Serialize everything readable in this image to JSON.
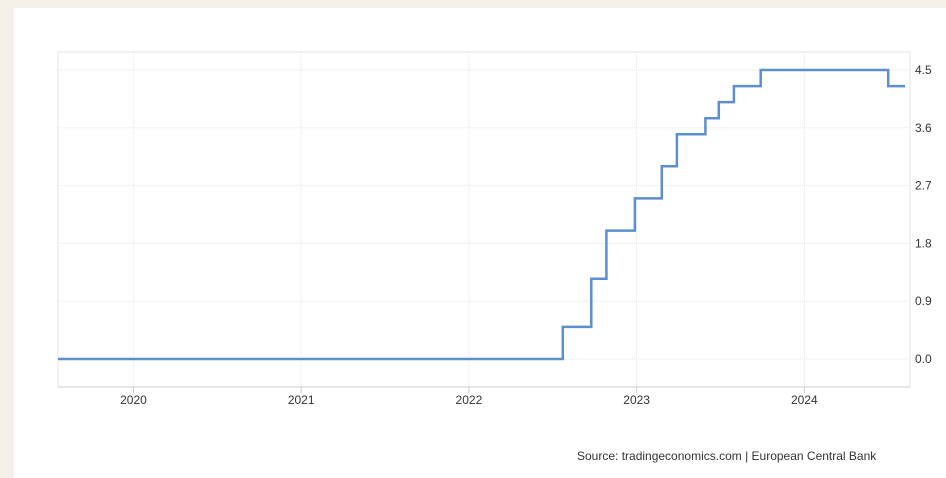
{
  "chart_data": {
    "type": "line",
    "title": "",
    "xlabel": "",
    "ylabel": "",
    "x_ticks": [
      "2020",
      "2021",
      "2022",
      "2023",
      "2024"
    ],
    "y_ticks": [
      "0.0",
      "0.9",
      "1.8",
      "2.7",
      "3.6",
      "4.5"
    ],
    "ylim": [
      0,
      4.5
    ],
    "xlim": [
      2019.55,
      2024.63
    ],
    "grid": true,
    "step": true,
    "colors": {
      "line": "#5b8fcf",
      "grid": "#e6e6e6",
      "axis": "#cccccc"
    },
    "series": [
      {
        "values": [
          {
            "x": 2019.55,
            "y": 0.0
          },
          {
            "x": 2022.56,
            "y": 0.5
          },
          {
            "x": 2022.73,
            "y": 1.25
          },
          {
            "x": 2022.82,
            "y": 2.0
          },
          {
            "x": 2022.99,
            "y": 2.5
          },
          {
            "x": 2023.15,
            "y": 3.0
          },
          {
            "x": 2023.24,
            "y": 3.5
          },
          {
            "x": 2023.41,
            "y": 3.75
          },
          {
            "x": 2023.49,
            "y": 4.0
          },
          {
            "x": 2023.58,
            "y": 4.25
          },
          {
            "x": 2023.74,
            "y": 4.5
          },
          {
            "x": 2024.5,
            "y": 4.25
          },
          {
            "x": 2024.6,
            "y": 4.25
          }
        ]
      }
    ]
  },
  "source_text": "Source: tradingeconomics.com | European Central Bank"
}
